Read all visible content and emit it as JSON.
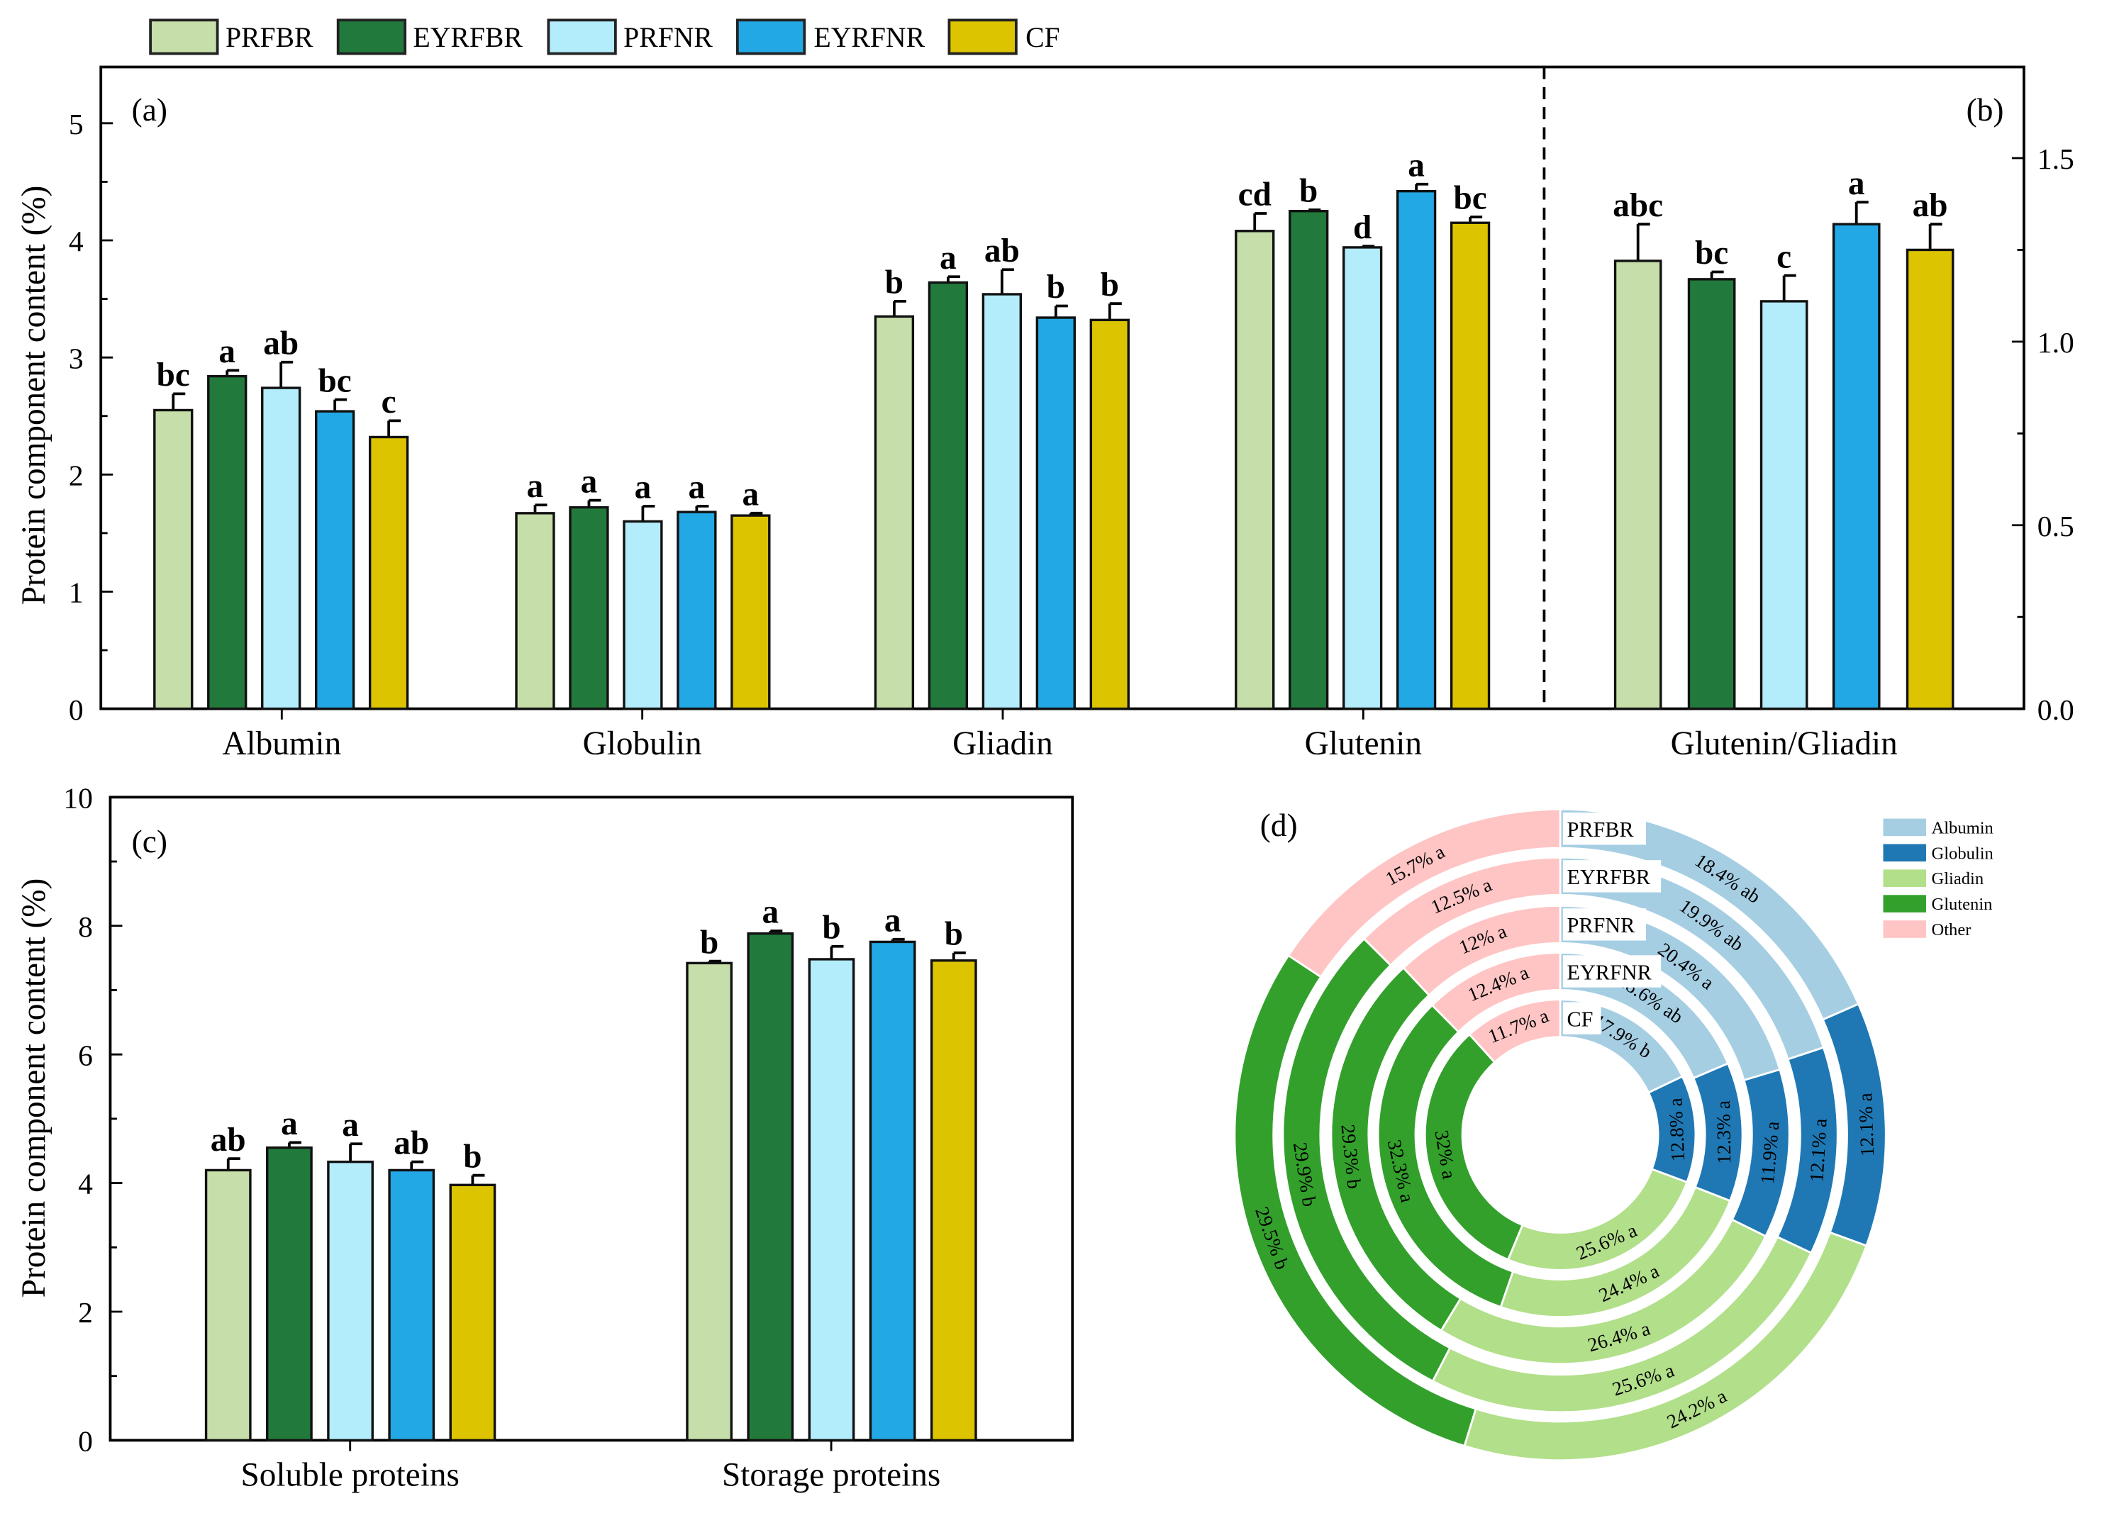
{
  "legend": {
    "series": [
      {
        "name": "PRFBR",
        "color": "#c6dea9"
      },
      {
        "name": "EYRFBR",
        "color": "#217a3c"
      },
      {
        "name": "PRFNR",
        "color": "#b3ecfb"
      },
      {
        "name": "EYRFNR",
        "color": "#22a8e4"
      },
      {
        "name": "CF",
        "color": "#dcc400"
      }
    ]
  },
  "chart_data": [
    {
      "panel": "(a)",
      "type": "bar",
      "ylabel": "Protein component content (%)",
      "ylim": [
        0,
        5.5
      ],
      "yticks": [
        "0",
        "1",
        "2",
        "3",
        "4",
        "5"
      ],
      "categories": [
        "Albumin",
        "Globulin",
        "Gliadin",
        "Glutenin"
      ],
      "series": [
        {
          "name": "PRFBR",
          "values": [
            2.55,
            1.67,
            3.35,
            4.08
          ],
          "errors": [
            0.14,
            0.07,
            0.13,
            0.15
          ],
          "letters": [
            "bc",
            "a",
            "b",
            "cd"
          ]
        },
        {
          "name": "EYRFBR",
          "values": [
            2.84,
            1.72,
            3.64,
            4.25
          ],
          "errors": [
            0.05,
            0.06,
            0.05,
            0.01
          ],
          "letters": [
            "a",
            "a",
            "a",
            "b"
          ]
        },
        {
          "name": "PRFNR",
          "values": [
            2.74,
            1.6,
            3.54,
            3.94
          ],
          "errors": [
            0.22,
            0.13,
            0.21,
            0.01
          ],
          "letters": [
            "ab",
            "a",
            "ab",
            "d"
          ]
        },
        {
          "name": "EYRFNR",
          "values": [
            2.54,
            1.68,
            3.34,
            4.42
          ],
          "errors": [
            0.1,
            0.05,
            0.1,
            0.06
          ],
          "letters": [
            "bc",
            "a",
            "b",
            "a"
          ]
        },
        {
          "name": "CF",
          "values": [
            2.32,
            1.65,
            3.32,
            4.15
          ],
          "errors": [
            0.14,
            0.02,
            0.14,
            0.05
          ],
          "letters": [
            "c",
            "a",
            "b",
            "bc"
          ]
        }
      ]
    },
    {
      "panel": "(b)",
      "type": "bar",
      "ylim": [
        0,
        1.75
      ],
      "yticks": [
        "0.0",
        "0.5",
        "1.0",
        "1.5"
      ],
      "categories": [
        "Glutenin/Gliadin"
      ],
      "series": [
        {
          "name": "PRFBR",
          "values": [
            1.22
          ],
          "errors": [
            0.1
          ],
          "letters": [
            "abc"
          ]
        },
        {
          "name": "EYRFBR",
          "values": [
            1.17
          ],
          "errors": [
            0.02
          ],
          "letters": [
            "bc"
          ]
        },
        {
          "name": "PRFNR",
          "values": [
            1.11
          ],
          "errors": [
            0.07
          ],
          "letters": [
            "c"
          ]
        },
        {
          "name": "EYRFNR",
          "values": [
            1.32
          ],
          "errors": [
            0.06
          ],
          "letters": [
            "a"
          ]
        },
        {
          "name": "CF",
          "values": [
            1.25
          ],
          "errors": [
            0.07
          ],
          "letters": [
            "ab"
          ]
        }
      ]
    },
    {
      "panel": "(c)",
      "type": "bar",
      "ylabel": "Protein component content (%)",
      "ylim": [
        0,
        10
      ],
      "yticks": [
        "0",
        "2",
        "4",
        "6",
        "8",
        "10"
      ],
      "categories": [
        "Soluble proteins",
        "Storage proteins"
      ],
      "series": [
        {
          "name": "PRFBR",
          "values": [
            4.2,
            7.42
          ],
          "errors": [
            0.18,
            0.03
          ],
          "letters": [
            "ab",
            "b"
          ]
        },
        {
          "name": "EYRFBR",
          "values": [
            4.55,
            7.88
          ],
          "errors": [
            0.08,
            0.04
          ],
          "letters": [
            "a",
            "a"
          ]
        },
        {
          "name": "PRFNR",
          "values": [
            4.33,
            7.48
          ],
          "errors": [
            0.28,
            0.2
          ],
          "letters": [
            "a",
            "b"
          ]
        },
        {
          "name": "EYRFNR",
          "values": [
            4.2,
            7.75
          ],
          "errors": [
            0.13,
            0.04
          ],
          "letters": [
            "ab",
            "a"
          ]
        },
        {
          "name": "CF",
          "values": [
            3.97,
            7.46
          ],
          "errors": [
            0.15,
            0.12
          ],
          "letters": [
            "b",
            "b"
          ]
        }
      ]
    },
    {
      "panel": "(d)",
      "type": "pie",
      "components": [
        {
          "name": "Albumin",
          "color": "#a6cee3"
        },
        {
          "name": "Globulin",
          "color": "#1f78b4"
        },
        {
          "name": "Gliadin",
          "color": "#b2df8a"
        },
        {
          "name": "Glutenin",
          "color": "#33a02c"
        },
        {
          "name": "Other",
          "color": "#ffc4c4"
        }
      ],
      "rings": [
        {
          "name": "PRFBR",
          "values": [
            18.4,
            12.1,
            24.2,
            29.5,
            15.7
          ],
          "labels": [
            "18.4% ab",
            "12.1% a",
            "24.2% a",
            "29.5% b",
            "15.7% a"
          ]
        },
        {
          "name": "EYRFBR",
          "values": [
            19.9,
            12.1,
            25.6,
            29.9,
            12.5
          ],
          "labels": [
            "19.9% ab",
            "12.1% a",
            "25.6% a",
            "29.9% b",
            "12.5% a"
          ]
        },
        {
          "name": "PRFNR",
          "values": [
            20.4,
            11.9,
            26.4,
            29.3,
            12.0
          ],
          "labels": [
            "20.4% a",
            "11.9% a",
            "26.4% a",
            "29.3% b",
            "12% a"
          ]
        },
        {
          "name": "EYRFNR",
          "values": [
            18.6,
            12.3,
            24.4,
            32.3,
            12.4
          ],
          "labels": [
            "18.6% ab",
            "12.3% a",
            "24.4% a",
            "32.3% a",
            "12.4% a"
          ]
        },
        {
          "name": "CF",
          "values": [
            17.9,
            12.8,
            25.6,
            32.0,
            11.7
          ],
          "labels": [
            "17.9% b",
            "12.8% a",
            "25.6% a",
            "32% a",
            "11.7% a"
          ]
        }
      ]
    }
  ]
}
